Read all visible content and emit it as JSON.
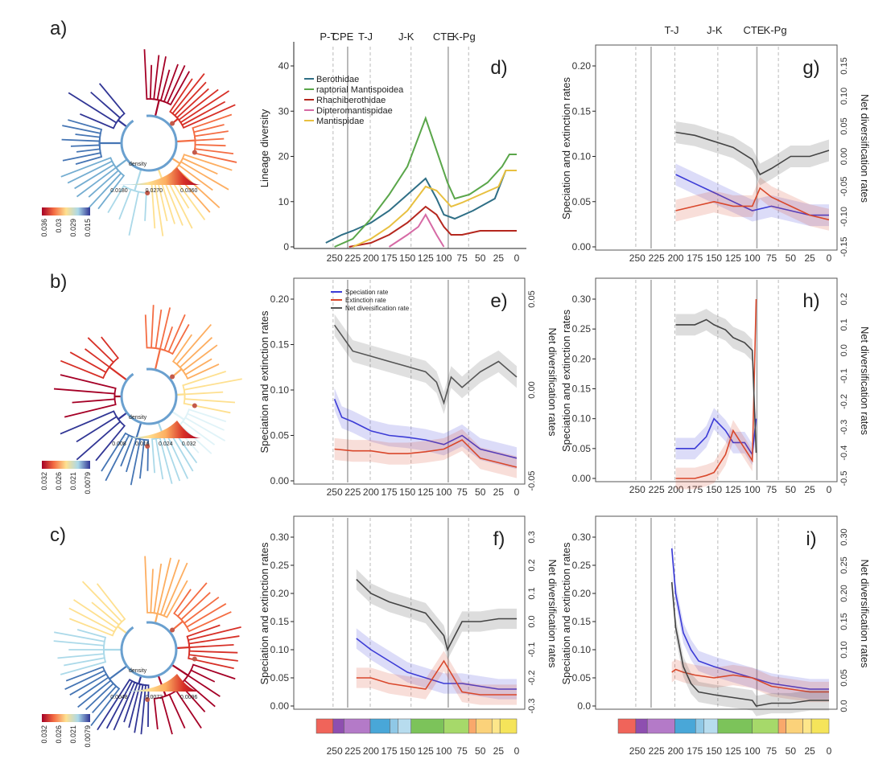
{
  "figure": {
    "events": [
      "P-T",
      "CPE",
      "T-J",
      "J-K",
      "CTE",
      "K-Pg"
    ],
    "event_ages": [
      252,
      232,
      201,
      145,
      94,
      66
    ],
    "xticks": [
      "250",
      "225",
      "200",
      "175",
      "150",
      "125",
      "100",
      "75",
      "50",
      "25",
      "0"
    ]
  },
  "trees": [
    {
      "label": "a)",
      "density_label": "density",
      "density_ticks": [
        "0.0180",
        "0.0270",
        "0.0360"
      ],
      "scale_ticks": [
        "0.036",
        "0.03",
        "0.029",
        "0.015"
      ],
      "colors": [
        "#a50026",
        "#d73027",
        "#f46d43",
        "#fdae61",
        "#fee090",
        "#abd9e9",
        "#74add1",
        "#4575b4",
        "#313695"
      ]
    },
    {
      "label": "b)",
      "density_label": "density",
      "density_ticks": [
        "0.008",
        "0.016",
        "0.024",
        "0.032"
      ],
      "scale_ticks": [
        "0.032",
        "0.026",
        "0.021",
        "0.0079"
      ],
      "colors": [
        "#a50026",
        "#d73027",
        "#f46d43",
        "#fdae61",
        "#fee090",
        "#e0f3f8",
        "#abd9e9",
        "#4575b4",
        "#313695"
      ]
    },
    {
      "label": "c)",
      "density_label": "density",
      "density_ticks": [
        "0.0048",
        "0.0072",
        "0.0096"
      ],
      "scale_ticks": [
        "0.032",
        "0.026",
        "0.021",
        "0.0079"
      ],
      "colors": [
        "#313695",
        "#4575b4",
        "#abd9e9",
        "#fee090",
        "#fdae61",
        "#f46d43",
        "#d73027",
        "#a50026",
        "#a50026"
      ]
    }
  ],
  "chart_data": [
    {
      "panel": "d)",
      "type": "line",
      "ylabel": "Lineage diversity",
      "ylim": [
        0,
        45
      ],
      "yticks": [
        "0",
        "10",
        "20",
        "30",
        "40"
      ],
      "xlim": [
        275,
        0
      ],
      "legend_position": "top-left",
      "series": [
        {
          "name": "Berothidae",
          "color": "#2f6f86",
          "x": [
            262,
            240,
            225,
            200,
            175,
            150,
            125,
            110,
            100,
            85,
            60,
            30,
            15,
            0
          ],
          "y": [
            1,
            3,
            4,
            6,
            9,
            13,
            17,
            12,
            8,
            7,
            9,
            12,
            19,
            19
          ]
        },
        {
          "name": "raptorial Mantispoidea",
          "color": "#5aa64a",
          "x": [
            250,
            225,
            200,
            175,
            150,
            125,
            110,
            95,
            85,
            65,
            40,
            20,
            10,
            0
          ],
          "y": [
            0,
            2,
            7,
            13,
            20,
            32,
            24,
            16,
            12,
            13,
            16,
            20,
            23,
            23
          ]
        },
        {
          "name": "Rhachiberothidae",
          "color": "#b5271e",
          "x": [
            230,
            200,
            175,
            150,
            125,
            110,
            100,
            90,
            75,
            50,
            25,
            0
          ],
          "y": [
            0,
            1,
            3,
            6,
            10,
            8,
            5,
            3,
            3,
            4,
            4,
            4
          ]
        },
        {
          "name": "Dipteromantispidae",
          "color": "#d66aa5",
          "x": [
            175,
            150,
            135,
            125,
            110,
            100
          ],
          "y": [
            0,
            3,
            5,
            8,
            3,
            0
          ]
        },
        {
          "name": "Mantispidae",
          "color": "#e8c040",
          "x": [
            225,
            200,
            175,
            150,
            125,
            110,
            100,
            90,
            75,
            50,
            25,
            15,
            0
          ],
          "y": [
            0,
            2,
            5,
            9,
            15,
            14,
            12,
            10,
            11,
            13,
            15,
            19,
            19
          ]
        }
      ]
    },
    {
      "panel": "e)",
      "type": "line",
      "ylabel": "Speciation and extinction rates",
      "ylabel2": "Net diversification rates",
      "ylim": [
        0,
        0.2
      ],
      "yticks": [
        "0.00",
        "0.05",
        "0.10",
        "0.15",
        "0.20"
      ],
      "y2lim": [
        -0.1,
        0.075
      ],
      "y2ticks": [
        "-0.05",
        "0.00",
        "0.05"
      ],
      "xlim": [
        275,
        0
      ],
      "legend": [
        "Speciation rate",
        "Extinction rate",
        "Net diversification rate"
      ],
      "series": [
        {
          "name": "Speciation rate",
          "color": "#3b3bd6",
          "x": [
            250,
            240,
            225,
            200,
            175,
            150,
            125,
            100,
            75,
            50,
            25,
            0
          ],
          "y": [
            0.09,
            0.07,
            0.065,
            0.055,
            0.05,
            0.048,
            0.045,
            0.04,
            0.05,
            0.035,
            0.03,
            0.025
          ]
        },
        {
          "name": "Extinction rate",
          "color": "#d9472b",
          "x": [
            250,
            225,
            200,
            175,
            150,
            125,
            100,
            75,
            50,
            25,
            0
          ],
          "y": [
            0.035,
            0.033,
            0.033,
            0.03,
            0.03,
            0.032,
            0.035,
            0.045,
            0.025,
            0.02,
            0.015
          ]
        },
        {
          "name": "Net diversification rate",
          "color": "#555555",
          "axis": "right",
          "x": [
            250,
            240,
            225,
            200,
            175,
            150,
            125,
            110,
            100,
            90,
            75,
            50,
            25,
            0
          ],
          "y": [
            0.05,
            0.04,
            0.025,
            0.02,
            0.015,
            0.01,
            0.005,
            -0.005,
            -0.025,
            0.0,
            -0.01,
            0.005,
            0.015,
            0.0
          ]
        }
      ]
    },
    {
      "panel": "f)",
      "type": "line",
      "ylabel": "Speciation and extinction rates",
      "ylabel2": "Net diversification rates",
      "ylim": [
        0,
        0.3
      ],
      "yticks": [
        "0.00",
        "0.05",
        "0.10",
        "0.15",
        "0.20",
        "0.25",
        "0.30"
      ],
      "y2lim": [
        -0.3,
        0.3
      ],
      "y2ticks": [
        "-0.3",
        "-0.2",
        "-0.1",
        "0.0",
        "0.1",
        "0.2",
        "0.3"
      ],
      "xlim": [
        275,
        0
      ],
      "series": [
        {
          "name": "Speciation rate",
          "color": "#3b3bd6",
          "x": [
            220,
            200,
            175,
            150,
            125,
            100,
            75,
            50,
            25,
            0
          ],
          "y": [
            0.12,
            0.1,
            0.08,
            0.06,
            0.05,
            0.04,
            0.04,
            0.035,
            0.03,
            0.03
          ]
        },
        {
          "name": "Extinction rate",
          "color": "#d9472b",
          "x": [
            220,
            200,
            175,
            150,
            125,
            100,
            75,
            50,
            25,
            0
          ],
          "y": [
            0.05,
            0.05,
            0.04,
            0.035,
            0.03,
            0.08,
            0.025,
            0.02,
            0.02,
            0.02
          ]
        },
        {
          "name": "Net diversification rate",
          "color": "#444444",
          "axis": "right",
          "x": [
            220,
            200,
            175,
            150,
            125,
            100,
            95,
            75,
            50,
            25,
            0
          ],
          "y": [
            0.15,
            0.1,
            0.07,
            0.05,
            0.03,
            -0.05,
            -0.1,
            0.0,
            0.0,
            0.01,
            0.01
          ]
        }
      ]
    },
    {
      "panel": "g)",
      "type": "line",
      "ylabel": "Speciation and extinction rates",
      "ylabel2": "Net diversification rates",
      "ylim": [
        0,
        0.2
      ],
      "yticks": [
        "0.00",
        "0.05",
        "0.10",
        "0.15",
        "0.20"
      ],
      "y2lim": [
        -0.15,
        0.15
      ],
      "y2ticks": [
        "-0.15",
        "-0.10",
        "-0.05",
        "0.00",
        "0.05",
        "0.10",
        "0.15"
      ],
      "xlim": [
        275,
        0
      ],
      "series": [
        {
          "name": "Speciation rate",
          "color": "#3b3bd6",
          "x": [
            200,
            175,
            150,
            125,
            100,
            75,
            50,
            25,
            0
          ],
          "y": [
            0.08,
            0.07,
            0.06,
            0.05,
            0.04,
            0.045,
            0.04,
            0.035,
            0.035
          ]
        },
        {
          "name": "Extinction rate",
          "color": "#d9472b",
          "x": [
            200,
            175,
            150,
            125,
            100,
            90,
            75,
            50,
            25,
            0
          ],
          "y": [
            0.04,
            0.045,
            0.05,
            0.045,
            0.045,
            0.065,
            0.055,
            0.045,
            0.035,
            0.03
          ]
        },
        {
          "name": "Net diversification rate",
          "color": "#444444",
          "axis": "right",
          "x": [
            200,
            175,
            150,
            125,
            100,
            90,
            75,
            50,
            25,
            0
          ],
          "y": [
            0.04,
            0.035,
            0.025,
            0.015,
            -0.005,
            -0.03,
            -0.02,
            0.0,
            0.0,
            0.01
          ]
        }
      ]
    },
    {
      "panel": "h)",
      "type": "line",
      "ylabel": "Speciation and extinction rates",
      "ylabel2": "Net diversification rates",
      "ylim": [
        0,
        0.3
      ],
      "yticks": [
        "0.00",
        "0.05",
        "0.10",
        "0.15",
        "0.20",
        "0.25",
        "0.30"
      ],
      "y2lim": [
        -0.5,
        0.2
      ],
      "y2ticks": [
        "-0.5",
        "-0.4",
        "-0.3",
        "-0.2",
        "-0.1",
        "0.0",
        "0.1",
        "0.2"
      ],
      "xlim": [
        275,
        0
      ],
      "series": [
        {
          "name": "Speciation rate",
          "color": "#3b3bd6",
          "x": [
            200,
            175,
            160,
            150,
            135,
            125,
            110,
            100,
            95
          ],
          "y": [
            0.05,
            0.05,
            0.07,
            0.1,
            0.08,
            0.06,
            0.06,
            0.04,
            0.1
          ]
        },
        {
          "name": "Extinction rate",
          "color": "#d9472b",
          "x": [
            200,
            175,
            160,
            150,
            135,
            125,
            110,
            100,
            95
          ],
          "y": [
            0.0,
            0.0,
            0.005,
            0.01,
            0.04,
            0.08,
            0.05,
            0.03,
            0.3
          ]
        },
        {
          "name": "Net diversification rate",
          "color": "#444444",
          "axis": "right",
          "x": [
            200,
            175,
            160,
            150,
            135,
            125,
            110,
            100,
            95
          ],
          "y": [
            0.1,
            0.1,
            0.12,
            0.1,
            0.08,
            0.05,
            0.03,
            0.0,
            -0.4
          ]
        }
      ]
    },
    {
      "panel": "i)",
      "type": "line",
      "ylabel": "Speciation and extinction rates",
      "ylabel2": "Net diversification rates",
      "ylim": [
        0,
        0.3
      ],
      "yticks": [
        "0.0",
        "0.05",
        "0.10",
        "0.15",
        "0.20",
        "0.25",
        "0.30"
      ],
      "y2lim": [
        0,
        0.3
      ],
      "y2ticks": [
        "0.0",
        "0.05",
        "0.10",
        "0.15",
        "0.20",
        "0.25",
        "0.30"
      ],
      "xlim": [
        275,
        0
      ],
      "series": [
        {
          "name": "Speciation rate",
          "color": "#3b3bd6",
          "x": [
            205,
            200,
            190,
            180,
            170,
            150,
            125,
            100,
            75,
            50,
            25,
            0
          ],
          "y": [
            0.28,
            0.2,
            0.13,
            0.1,
            0.08,
            0.07,
            0.06,
            0.05,
            0.04,
            0.035,
            0.03,
            0.03
          ]
        },
        {
          "name": "Extinction rate",
          "color": "#d9472b",
          "x": [
            205,
            200,
            190,
            175,
            150,
            125,
            100,
            75,
            50,
            25,
            0
          ],
          "y": [
            0.06,
            0.065,
            0.06,
            0.055,
            0.05,
            0.055,
            0.05,
            0.035,
            0.03,
            0.025,
            0.025
          ]
        },
        {
          "name": "Net diversification rate",
          "color": "#444444",
          "axis": "right",
          "x": [
            205,
            200,
            190,
            180,
            170,
            150,
            125,
            100,
            95,
            75,
            50,
            25,
            0
          ],
          "y": [
            0.22,
            0.14,
            0.07,
            0.04,
            0.025,
            0.02,
            0.015,
            0.01,
            0.0,
            0.005,
            0.005,
            0.01,
            0.01
          ]
        }
      ]
    }
  ]
}
